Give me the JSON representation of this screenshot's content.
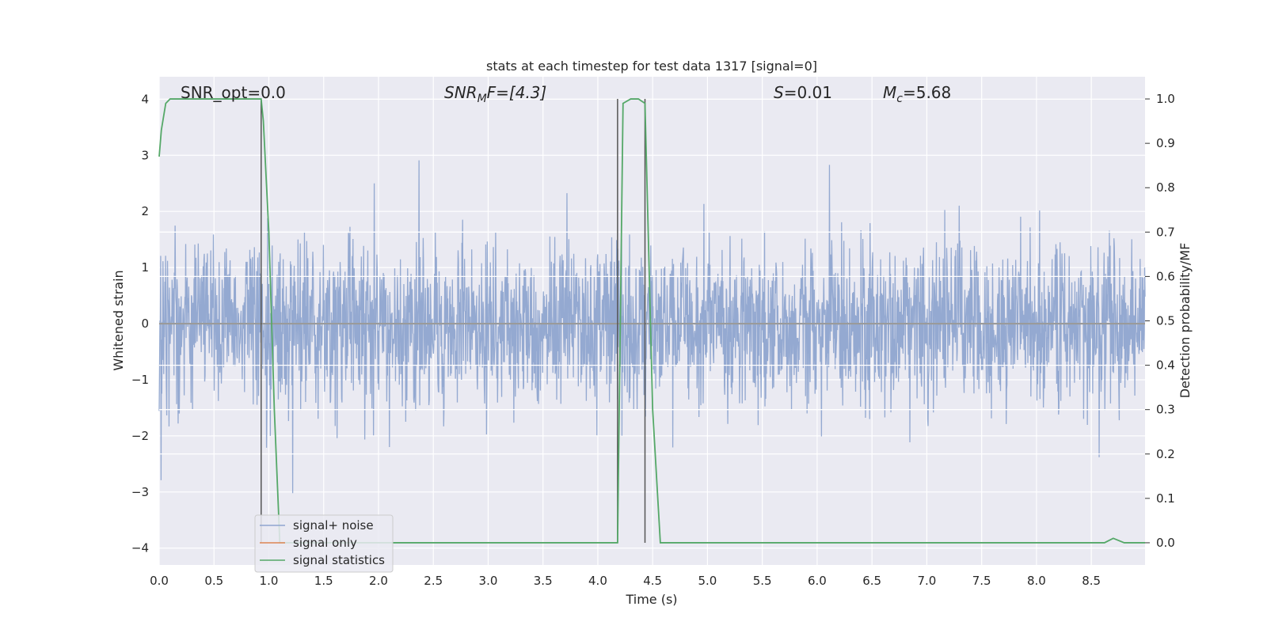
{
  "chart_data": {
    "type": "line",
    "title": "stats at each timestep for test data 1317 [signal=0]",
    "xlabel": "Time (s)",
    "ylabel_left": "Whitened strain",
    "ylabel_right": "Detection probability/MF",
    "xlim": [
      0,
      8.99
    ],
    "ylim_left": [
      -4.3,
      4.4
    ],
    "ylim_right": [
      -0.05,
      1.05
    ],
    "x_ticks": [
      "0.0",
      "0.5",
      "1.0",
      "1.5",
      "2.0",
      "2.5",
      "3.0",
      "3.5",
      "4.0",
      "4.5",
      "5.0",
      "5.5",
      "6.0",
      "6.5",
      "7.0",
      "7.5",
      "8.0",
      "8.5"
    ],
    "y_ticks_left": [
      "4",
      "3",
      "2",
      "1",
      "0",
      "−1",
      "−2",
      "−3",
      "−4"
    ],
    "y_ticks_right": [
      "1.0",
      "0.9",
      "0.8",
      "0.7",
      "0.6",
      "0.5",
      "0.4",
      "0.3",
      "0.2",
      "0.1",
      "0.0"
    ],
    "grid": true,
    "legend_placement": "lower left",
    "annotations": {
      "snr_opt": "SNR_opt=0.0",
      "snr_mf_name": "SNR",
      "snr_mf_sub": "M",
      "snr_mf_rest": "F=[4.3]",
      "s_name": "S",
      "s_rest": "=0.01",
      "mc_name": "M",
      "mc_sub": "c",
      "mc_rest": "=5.68"
    },
    "series": [
      {
        "name": "signal+ noise",
        "axis": "left",
        "color": "#8fa5cf",
        "note_values": "dense noisy strain trace spanning roughly -3.6 to 4.0 over 0–8.99 s",
        "range": [
          -3.6,
          4.0
        ]
      },
      {
        "name": "signal only",
        "axis": "left",
        "color": "#dd8452",
        "x": [
          0,
          8.99
        ],
        "y": [
          0,
          0
        ]
      },
      {
        "name": "signal statistics",
        "axis": "right",
        "color": "#55a868",
        "x": [
          0.0,
          0.02,
          0.06,
          0.1,
          0.2,
          0.5,
          0.8,
          0.93,
          0.95,
          1.0,
          1.05,
          1.1,
          1.2,
          1.5,
          2.0,
          3.0,
          4.0,
          4.18,
          4.23,
          4.3,
          4.37,
          4.43,
          4.5,
          4.57,
          5.0,
          6.0,
          7.0,
          8.0,
          8.62,
          8.7,
          8.8,
          8.9,
          8.99
        ],
        "y": [
          0.87,
          0.93,
          0.99,
          1.0,
          1.0,
          1.0,
          1.0,
          1.0,
          0.95,
          0.7,
          0.3,
          0.0,
          0.0,
          0.0,
          0.0,
          0.0,
          0.0,
          0.0,
          0.99,
          1.0,
          1.0,
          0.99,
          0.3,
          0.0,
          0.0,
          0.0,
          0.0,
          0.0,
          0.0,
          0.01,
          0.0,
          0.0,
          0.0
        ]
      }
    ],
    "vertical_lines": [
      0.93,
      4.18,
      4.43
    ],
    "white_lines_right": [
      0.7,
      0.6,
      0.4,
      0.3,
      0.2
    ]
  }
}
